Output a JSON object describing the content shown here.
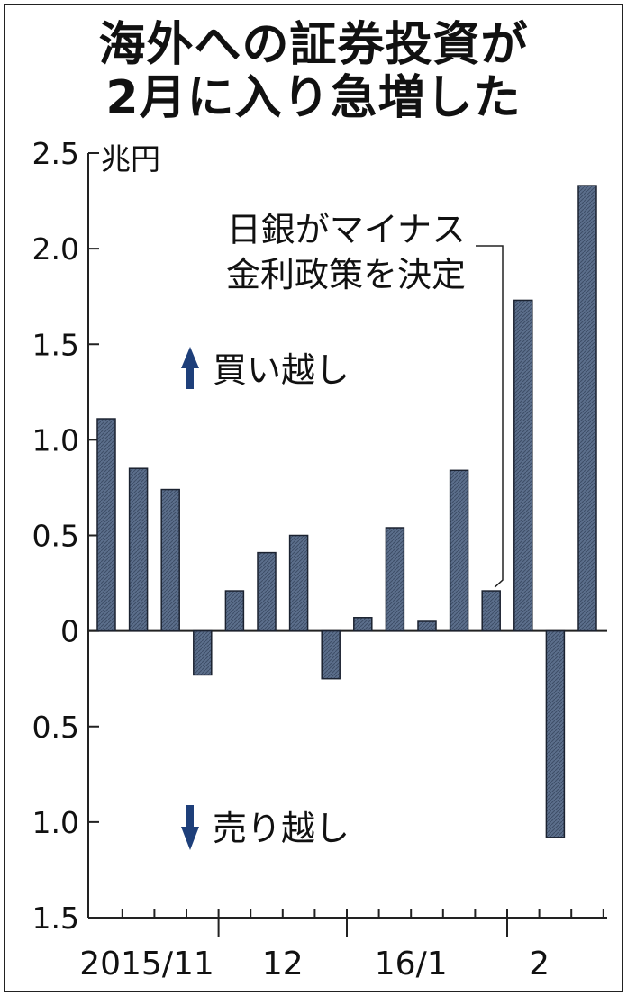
{
  "title_lines": [
    "海外への証券投資が",
    "2月に入り急増した"
  ],
  "chart_data": {
    "type": "bar",
    "title": "海外への証券投資が2月に入り急増した",
    "unit": "兆円",
    "ylim": [
      -1.5,
      2.5
    ],
    "y_tick_values": [
      2.5,
      2.0,
      1.5,
      1.0,
      0.5,
      0,
      -0.5,
      -1.0,
      -1.5
    ],
    "y_tick_labels": [
      "2.5",
      "2.0",
      "1.5",
      "1.0",
      "0.5",
      "0",
      "0.5",
      "1.0",
      "1.5"
    ],
    "x_tick_labels": [
      "2015/11",
      "12",
      "16/1",
      "2"
    ],
    "x_tick_label_bar_index": [
      2.5,
      6.5,
      10.5,
      14.5
    ],
    "group_separator_after_bar": [
      3,
      7,
      12
    ],
    "values": [
      1.11,
      0.85,
      0.74,
      -0.23,
      0.21,
      0.41,
      0.5,
      -0.25,
      0.07,
      0.54,
      0.05,
      0.84,
      0.21,
      1.73,
      -1.08,
      2.33
    ],
    "grid": false,
    "annotations": {
      "boj_line1": "日銀がマイナス",
      "boj_line2": "金利政策を決定",
      "boj_bar_index": 12,
      "buy_label": "買い越し",
      "sell_label": "売り越し"
    }
  },
  "colors": {
    "bar_fill": "#5c6f8c",
    "bar_stroke": "#1b2230",
    "arrow": "#1e3f7a",
    "axis": "#222222"
  }
}
